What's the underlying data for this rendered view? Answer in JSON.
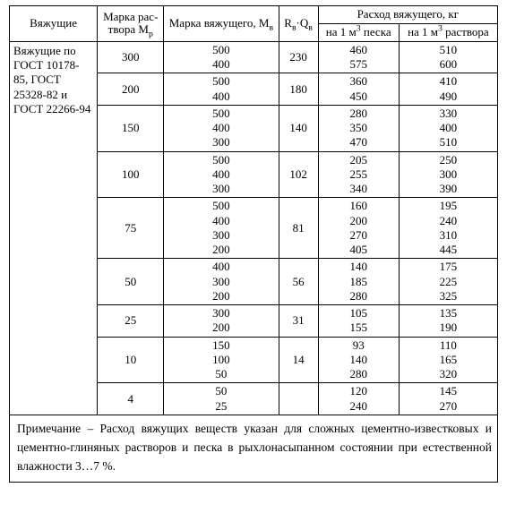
{
  "header": {
    "binders": "Вяжущие",
    "mortar_mark": "Марка рас-\nтвора М",
    "mortar_mark_sub": "р",
    "binder_mark": "Марка вяжущего, М",
    "binder_mark_sub": "в",
    "rq": "R",
    "rq_sub1": "в",
    "rq_mid": "·Q",
    "rq_sub2": "в",
    "consumption_top": "Расход вяжущего, кг",
    "per_sand": "на 1 м",
    "per_sand_sup": "3",
    "per_sand_tail": " песка",
    "per_mortar": "на 1 м",
    "per_mortar_sup": "3",
    "per_mortar_tail": " раствора"
  },
  "left_label": "Вяжущие по ГОСТ 10178-85, ГОСТ 25328-82 и ГОСТ 22266-94",
  "groups": [
    {
      "mp": "300",
      "rq": "230",
      "bm": [
        "500",
        "400"
      ],
      "sand": [
        "460",
        "575"
      ],
      "mort": [
        "510",
        "600"
      ]
    },
    {
      "mp": "200",
      "rq": "180",
      "bm": [
        "500",
        "400"
      ],
      "sand": [
        "360",
        "450"
      ],
      "mort": [
        "410",
        "490"
      ]
    },
    {
      "mp": "150",
      "rq": "140",
      "bm": [
        "500",
        "400",
        "300"
      ],
      "sand": [
        "280",
        "350",
        "470"
      ],
      "mort": [
        "330",
        "400",
        "510"
      ]
    },
    {
      "mp": "100",
      "rq": "102",
      "bm": [
        "500",
        "400",
        "300"
      ],
      "sand": [
        "205",
        "255",
        "340"
      ],
      "mort": [
        "250",
        "300",
        "390"
      ]
    },
    {
      "mp": "75",
      "rq": "81",
      "bm": [
        "500",
        "400",
        "300",
        "200"
      ],
      "sand": [
        "160",
        "200",
        "270",
        "405"
      ],
      "mort": [
        "195",
        "240",
        "310",
        "445"
      ]
    },
    {
      "mp": "50",
      "rq": "56",
      "bm": [
        "400",
        "300",
        "200"
      ],
      "sand": [
        "140",
        "185",
        "280"
      ],
      "mort": [
        "175",
        "225",
        "325"
      ]
    },
    {
      "mp": "25",
      "rq": "31",
      "bm": [
        "300",
        "200"
      ],
      "sand": [
        "105",
        "155"
      ],
      "mort": [
        "135",
        "190"
      ]
    },
    {
      "mp": "10",
      "rq": "14",
      "bm": [
        "150",
        "100",
        "50"
      ],
      "sand": [
        "93",
        "140",
        "280"
      ],
      "mort": [
        "110",
        "165",
        "320"
      ]
    },
    {
      "mp": "4",
      "rq": "",
      "bm": [
        "50",
        "25"
      ],
      "sand": [
        "120",
        "240"
      ],
      "mort": [
        "145",
        "270"
      ]
    }
  ],
  "note": "Примечание – Расход вяжущих веществ указан для сложных цементно-известковых и цементно-глиняных растворов и песка в рыхлонасыпанном состоянии при естественной влажности 3…7 %."
}
